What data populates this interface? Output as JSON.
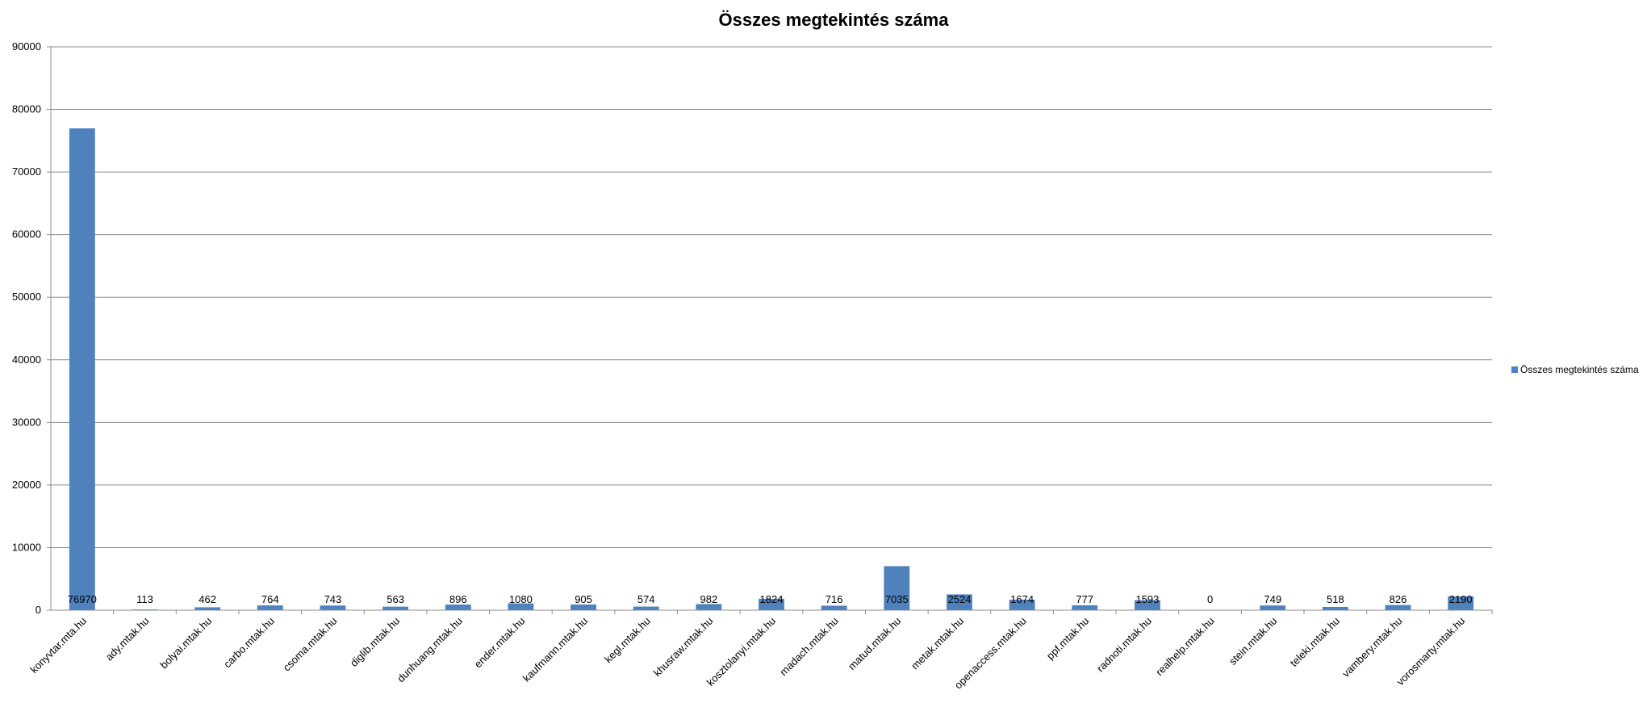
{
  "chart_data": {
    "type": "bar",
    "title": "Összes megtekintés száma",
    "xlabel": "",
    "ylabel": "",
    "ylim": [
      0,
      90000
    ],
    "yticks": [
      0,
      10000,
      20000,
      30000,
      40000,
      50000,
      60000,
      70000,
      80000,
      90000
    ],
    "grid": true,
    "legend_position": "right",
    "categories": [
      "konyvtar.mta.hu",
      "ady.mtak.hu",
      "bolyai.mtak.hu",
      "carbo.mtak.hu",
      "csoma.mtak.hu",
      "diglib.mtak.hu",
      "dunhuang.mtak.hu",
      "ender.mtak.hu",
      "kaufmann.mtak.hu",
      "kegl.mtak.hu",
      "khusraw.mtak.hu",
      "kosztolanyi.mtak.hu",
      "madach.mtak.hu",
      "matud.mtak.hu",
      "metak.mtak.hu",
      "openaccess.mtak.hu",
      "ppf.mtak.hu",
      "radnoti.mtak.hu",
      "realhelp.mtak.hu",
      "stein.mtak.hu",
      "teleki.mtak.hu",
      "vambery.mtak.hu",
      "vorosmarty.mtak.hu"
    ],
    "series": [
      {
        "name": "Összes megtekintés száma",
        "color": "#4f81bd",
        "values": [
          76970,
          113,
          462,
          764,
          743,
          563,
          896,
          1080,
          905,
          574,
          982,
          1824,
          716,
          7035,
          2524,
          1674,
          777,
          1593,
          0,
          749,
          518,
          826,
          2190
        ]
      }
    ]
  }
}
